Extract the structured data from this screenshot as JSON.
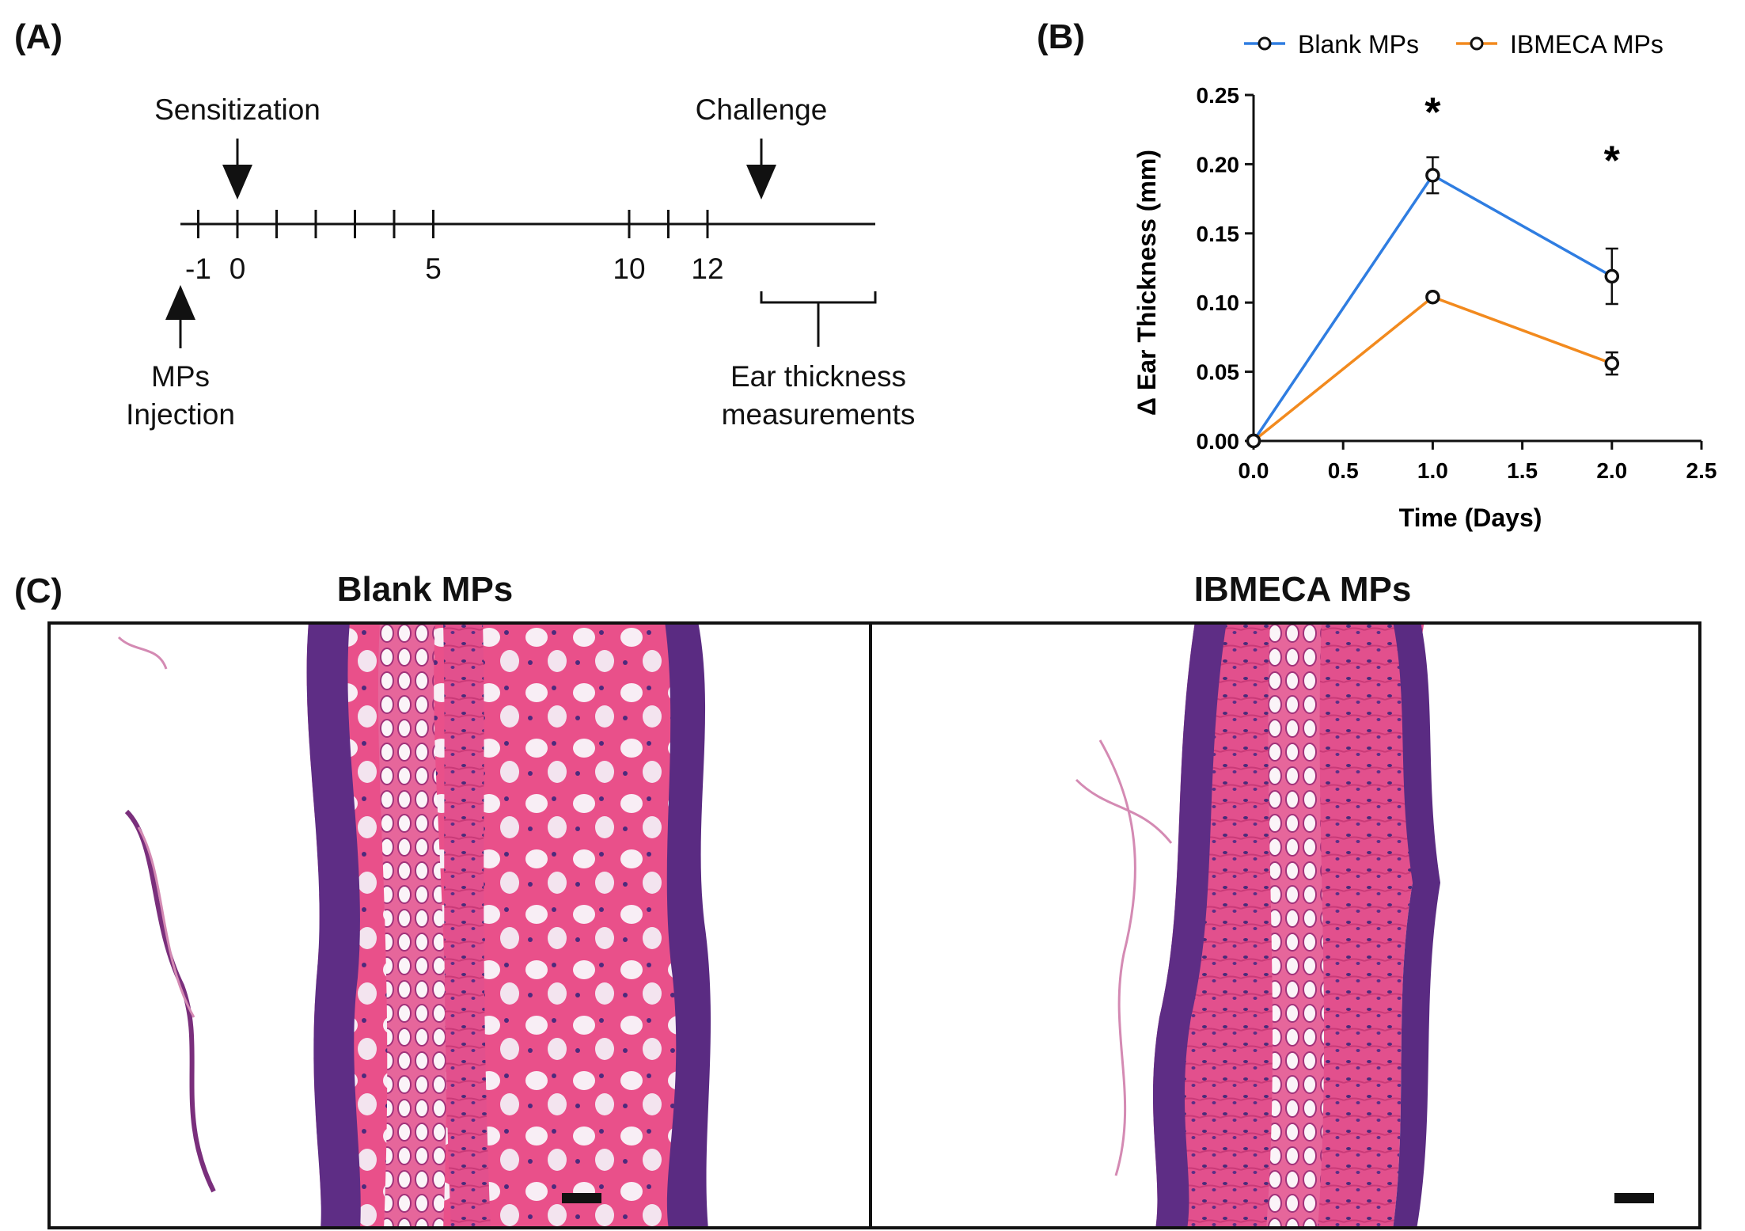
{
  "panel_a": {
    "label": "(A)",
    "sensitization": "Sensitization",
    "challenge": "Challenge",
    "mps_line1": "MPs",
    "mps_line2": "Injection",
    "ear_line1": "Ear thickness",
    "ear_line2": "measurements",
    "ticks": [
      {
        "day": -1,
        "text": "-1"
      },
      {
        "day": 0,
        "text": "0"
      },
      {
        "day": 1,
        "text": ""
      },
      {
        "day": 2,
        "text": ""
      },
      {
        "day": 3,
        "text": ""
      },
      {
        "day": 4,
        "text": ""
      },
      {
        "day": 5,
        "text": "5"
      },
      {
        "day": 10,
        "text": "10"
      },
      {
        "day": 11,
        "text": ""
      },
      {
        "day": 12,
        "text": "12"
      }
    ]
  },
  "panel_b": {
    "label": "(B)",
    "legend": [
      {
        "name": "Blank MPs",
        "color": "#2f7de1"
      },
      {
        "name": "IBMECA MPs",
        "color": "#f28a1e"
      }
    ]
  },
  "chart_data": {
    "type": "line",
    "xlabel": "Time (Days)",
    "ylabel": "Δ Ear Thickness (mm)",
    "xlim": [
      0.0,
      2.5
    ],
    "ylim": [
      0.0,
      0.25
    ],
    "xticks": [
      "0.0",
      "0.5",
      "1.0",
      "1.5",
      "2.0",
      "2.5"
    ],
    "yticks": [
      "0.00",
      "0.05",
      "0.10",
      "0.15",
      "0.20",
      "0.25"
    ],
    "legend_position": "top",
    "grid": false,
    "series": [
      {
        "name": "Blank MPs",
        "color": "#2f7de1",
        "x": [
          0,
          1,
          2
        ],
        "y": [
          0.0,
          0.192,
          0.119
        ],
        "err": [
          0,
          0.013,
          0.02
        ]
      },
      {
        "name": "IBMECA MPs",
        "color": "#f28a1e",
        "x": [
          0,
          1,
          2
        ],
        "y": [
          0.0,
          0.104,
          0.056
        ],
        "err": [
          0,
          0.002,
          0.008
        ]
      }
    ],
    "annotations": [
      {
        "text": "*",
        "x": 1,
        "y": 0.24
      },
      {
        "text": "*",
        "x": 2,
        "y": 0.205
      }
    ]
  },
  "panel_c": {
    "label": "(C)",
    "titles": [
      "Blank MPs",
      "IBMECA MPs"
    ]
  }
}
